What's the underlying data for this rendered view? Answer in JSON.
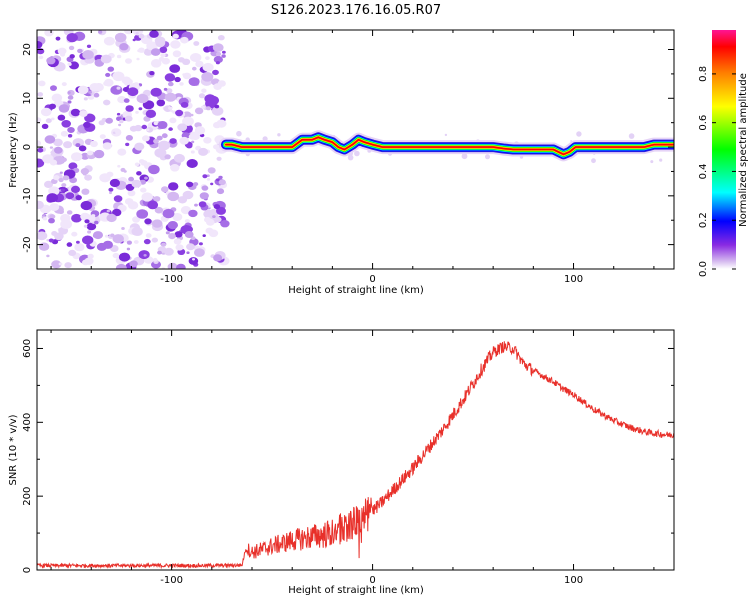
{
  "title": "S126.2023.176.16.05.R07",
  "chart_data": [
    {
      "type": "heatmap",
      "xlabel": "Height of straight line (km)",
      "ylabel": "Frequency (Hz)",
      "xlim": [
        -167,
        150
      ],
      "ylim": [
        -25,
        24
      ],
      "xticks": [
        -100,
        0,
        100
      ],
      "yticks": [
        -20,
        -10,
        0,
        10,
        20
      ],
      "colorbar": {
        "label": "Normalized spectral amplitude",
        "range": [
          0,
          0.98
        ],
        "ticks": [
          "0.0",
          "0.2",
          "0.4",
          "0.6",
          "0.8"
        ],
        "colormap": [
          "#ffffff",
          "#d8bff0",
          "#8a2be2",
          "#0000ff",
          "#00ffff",
          "#00ff00",
          "#ffff00",
          "#ff7f00",
          "#ff0000",
          "#ff1493"
        ]
      },
      "noise_region_x": [
        -167,
        -73
      ],
      "ridge": {
        "description": "frequency of dominant signal vs height",
        "x": [
          -73,
          -70,
          -65,
          -60,
          -55,
          -50,
          -45,
          -40,
          -35,
          -30,
          -27,
          -24,
          -20,
          -17,
          -14,
          -10,
          -7,
          -4,
          0,
          5,
          10,
          20,
          30,
          40,
          50,
          55,
          60,
          65,
          70,
          80,
          90,
          95,
          98,
          101,
          105,
          110,
          120,
          130,
          135,
          140,
          145,
          150
        ],
        "y": [
          0.5,
          0.5,
          0.0,
          0.0,
          0.0,
          0.0,
          0.0,
          0.0,
          1.5,
          1.5,
          2.0,
          1.5,
          1.0,
          0.0,
          -0.5,
          0.5,
          1.5,
          1.0,
          0.5,
          0.0,
          0.0,
          0.0,
          0.0,
          0.0,
          0.0,
          0.0,
          0.0,
          -0.3,
          -0.5,
          -0.5,
          -0.5,
          -1.5,
          -1.0,
          0.0,
          0.0,
          0.0,
          0.0,
          0.0,
          0.0,
          0.5,
          0.5,
          0.5
        ]
      }
    },
    {
      "type": "line",
      "xlabel": "Height of straight line (km)",
      "ylabel": "SNR (10 * v/v)",
      "xlim": [
        -167,
        150
      ],
      "ylim": [
        0,
        650
      ],
      "xticks": [
        -100,
        0,
        100
      ],
      "yticks": [
        0,
        200,
        400,
        600
      ],
      "series": [
        {
          "color": "#e8302a",
          "x": [
            -167,
            -120,
            -80,
            -65,
            -63,
            -60,
            -55,
            -50,
            -45,
            -40,
            -35,
            -30,
            -25,
            -20,
            -15,
            -10,
            -5,
            0,
            5,
            10,
            15,
            20,
            25,
            30,
            35,
            40,
            45,
            50,
            55,
            60,
            65,
            70,
            75,
            80,
            85,
            90,
            95,
            100,
            105,
            110,
            115,
            120,
            125,
            130,
            135,
            140,
            145,
            150
          ],
          "y": [
            12,
            12,
            12,
            13,
            60,
            48,
            55,
            65,
            72,
            80,
            85,
            90,
            95,
            100,
            115,
            125,
            140,
            160,
            185,
            215,
            245,
            275,
            310,
            345,
            380,
            420,
            460,
            505,
            550,
            590,
            605,
            600,
            560,
            540,
            525,
            510,
            490,
            475,
            455,
            435,
            420,
            405,
            393,
            383,
            375,
            370,
            367,
            365
          ]
        }
      ]
    }
  ]
}
